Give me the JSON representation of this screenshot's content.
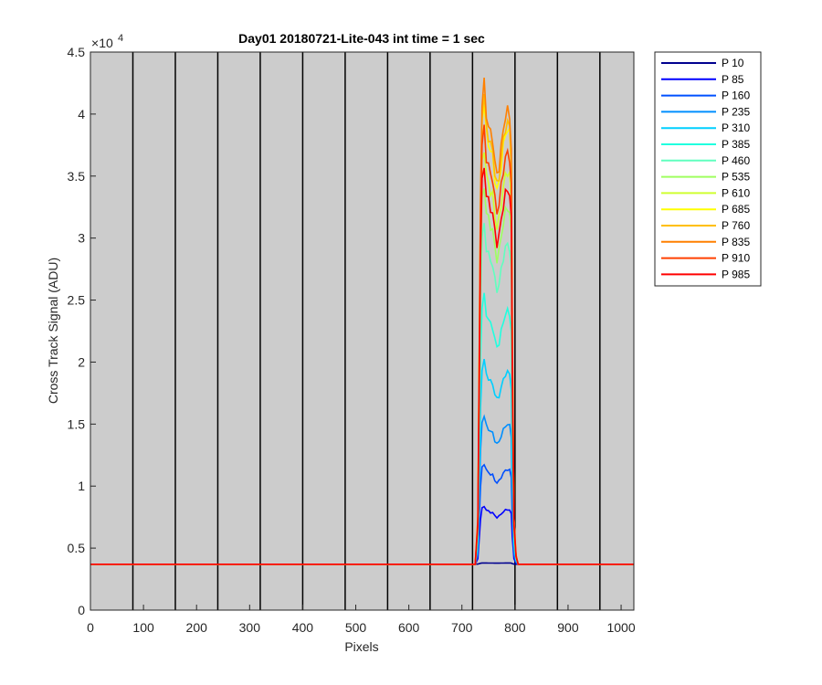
{
  "chart_data": {
    "type": "line",
    "title": "Day01 20180721-Lite-043 int time = 1 sec",
    "xlabel": "Pixels",
    "ylabel": "Cross Track Signal (ADU)",
    "xlim": [
      0,
      1024
    ],
    "ylim": [
      0,
      45000
    ],
    "x_ticks": [
      0,
      100,
      200,
      300,
      400,
      500,
      600,
      700,
      800,
      900,
      1000
    ],
    "y_ticks": [
      0,
      5000,
      10000,
      15000,
      20000,
      25000,
      30000,
      35000,
      40000,
      45000
    ],
    "y_tick_labels": [
      "0",
      "0.5",
      "1",
      "1.5",
      "2",
      "2.5",
      "3",
      "3.5",
      "4",
      "4.5"
    ],
    "y_exponent": "10",
    "y_exponent_power": "4",
    "vertical_lines_x": [
      80,
      160,
      240,
      320,
      400,
      480,
      560,
      640,
      720,
      800,
      880,
      960
    ],
    "background": "#cccccc",
    "grid": false,
    "legend_position": "outside-right",
    "baseline": 3700,
    "signal_x_range": [
      735,
      795
    ],
    "profile_x": [
      725,
      730,
      735,
      738,
      742,
      746,
      750,
      754,
      758,
      762,
      766,
      770,
      774,
      778,
      782,
      786,
      790,
      793,
      795,
      798,
      802,
      806
    ],
    "profile_shape": [
      0.0,
      0.1,
      0.8,
      1.0,
      1.04,
      0.97,
      0.95,
      0.93,
      0.92,
      0.87,
      0.84,
      0.86,
      0.9,
      0.94,
      0.97,
      0.98,
      0.97,
      0.9,
      0.5,
      0.1,
      0.02,
      0.0
    ],
    "series": [
      {
        "name": "P 10",
        "color": "#00008f",
        "peak": 3800
      },
      {
        "name": "P 85",
        "color": "#0000ff",
        "peak": 8200
      },
      {
        "name": "P 160",
        "color": "#0050ff",
        "peak": 11500
      },
      {
        "name": "P 235",
        "color": "#008fff",
        "peak": 15200
      },
      {
        "name": "P 310",
        "color": "#00cfff",
        "peak": 19500
      },
      {
        "name": "P 385",
        "color": "#20ffdf",
        "peak": 24500
      },
      {
        "name": "P 460",
        "color": "#60ffbf",
        "peak": 30000
      },
      {
        "name": "P 535",
        "color": "#9fff60",
        "peak": 33000
      },
      {
        "name": "P 610",
        "color": "#cfff30",
        "peak": 36000
      },
      {
        "name": "P 685",
        "color": "#ffff00",
        "peak": 39500
      },
      {
        "name": "P 760",
        "color": "#ffbf00",
        "peak": 40000
      },
      {
        "name": "P 835",
        "color": "#ff8000",
        "peak": 41000
      },
      {
        "name": "P 910",
        "color": "#ff4000",
        "peak": 37500
      },
      {
        "name": "P 985",
        "color": "#ff0000",
        "peak": 34500
      }
    ]
  }
}
